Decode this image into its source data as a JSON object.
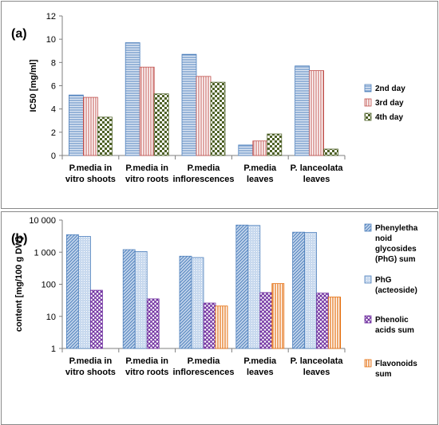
{
  "colors": {
    "series_a_2nd": "#4f81bd",
    "series_a_3rd": "#c0504d",
    "series_a_4th": "#4f6228",
    "series_b_phg_sum": "#4f81bd",
    "series_b_phg_act": "#95b3d7",
    "series_b_phenolic": "#7030a0",
    "series_b_flav": "#e46c0a"
  },
  "chart_data": [
    {
      "type": "bar",
      "panel_label": "(a)",
      "title": "",
      "xlabel": "",
      "ylabel": "IC50 [mg/ml]",
      "ylim": [
        0,
        12
      ],
      "y_ticks": [
        "0",
        "2",
        "4",
        "6",
        "8",
        "10",
        "12"
      ],
      "categories": [
        [
          "P.media in",
          "vitro shoots"
        ],
        [
          "P.media in",
          "vitro roots"
        ],
        [
          "P.media",
          "inflorescences"
        ],
        [
          "P.media",
          "leaves"
        ],
        [
          "P. lanceolata",
          "leaves"
        ]
      ],
      "series": [
        {
          "name": "2nd day",
          "values": [
            5.2,
            9.7,
            8.7,
            0.9,
            7.7
          ]
        },
        {
          "name": "3rd day",
          "values": [
            5.0,
            7.6,
            6.8,
            1.25,
            7.3
          ]
        },
        {
          "name": "4th day",
          "values": [
            3.3,
            5.3,
            6.3,
            1.85,
            0.55
          ]
        }
      ],
      "legend_position": "right",
      "grid": false
    },
    {
      "type": "bar",
      "panel_label": "(b)",
      "title": "",
      "xlabel": "",
      "ylabel": "content [mg/100 g DW]",
      "y_scale": "log",
      "ylim": [
        1,
        10000
      ],
      "y_ticks": [
        "1",
        "10",
        "100",
        "1 000",
        "10 000"
      ],
      "categories": [
        [
          "P.media in",
          "vitro shoots"
        ],
        [
          "P.media in",
          "vitro roots"
        ],
        [
          "P.media",
          "inflorescences"
        ],
        [
          "P.media",
          "leaves"
        ],
        [
          "P. lanceolata",
          "leaves"
        ]
      ],
      "series": [
        {
          "name": "Phenylethanoid glycosides (PhG) sum",
          "legend_lines": [
            "Phenyletha",
            "noid",
            "glycosides",
            "(PhG) sum"
          ],
          "values": [
            3500,
            1200,
            750,
            7000,
            4200
          ]
        },
        {
          "name": "PhG (acteoside)",
          "legend_lines": [
            "PhG",
            "(acteoside)"
          ],
          "values": [
            3100,
            1050,
            680,
            6800,
            4100
          ]
        },
        {
          "name": "Phenolic acids sum",
          "legend_lines": [
            "Phenolic",
            "acids sum"
          ],
          "values": [
            65,
            35,
            26,
            55,
            53
          ]
        },
        {
          "name": "Flavonoids sum",
          "legend_lines": [
            "Flavonoids",
            "sum"
          ],
          "values": [
            null,
            null,
            21,
            105,
            40
          ]
        }
      ],
      "legend_position": "right",
      "grid": false
    }
  ]
}
